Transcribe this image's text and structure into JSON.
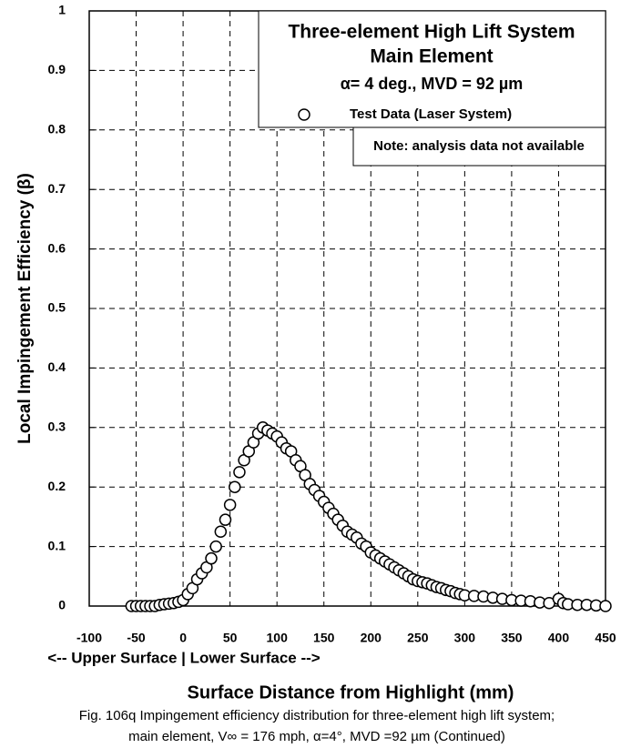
{
  "chart_data": {
    "type": "scatter",
    "title": "Three-element High Lift System",
    "subtitle": "Main Element",
    "condition": "α= 4 deg., MVD = 92 µm",
    "note": "Note: analysis data not available",
    "x_label": "Surface Distance from Highlight (mm)",
    "x_sublabel": "<-- Upper Surface  |  Lower Surface -->",
    "y_label": "Local Impingement Efficiency (β)",
    "caption": [
      "Fig. 106q  Impingement efficiency distribution for three-element high lift system;",
      "main element, V∞ = 176 mph, α=4°, MVD =92 µm (Continued)"
    ],
    "xlim": [
      -100,
      450
    ],
    "xticks": [
      -100,
      -50,
      0,
      50,
      100,
      150,
      200,
      250,
      300,
      350,
      400,
      450
    ],
    "ylim": [
      0,
      1
    ],
    "yticks": [
      0,
      0.1,
      0.2,
      0.3,
      0.4,
      0.5,
      0.6,
      0.7,
      0.8,
      0.9,
      1
    ],
    "grid": true,
    "series": [
      {
        "name": "Test Data (Laser System)",
        "color": "#000000",
        "x": [
          -55,
          -50,
          -45,
          -40,
          -35,
          -30,
          -25,
          -20,
          -15,
          -10,
          -5,
          0,
          5,
          10,
          15,
          20,
          25,
          30,
          35,
          40,
          45,
          50,
          55,
          60,
          65,
          70,
          75,
          80,
          85,
          90,
          95,
          100,
          105,
          110,
          115,
          120,
          125,
          130,
          135,
          140,
          145,
          150,
          155,
          160,
          165,
          170,
          175,
          180,
          185,
          190,
          195,
          200,
          205,
          210,
          215,
          220,
          225,
          230,
          235,
          240,
          245,
          250,
          255,
          260,
          265,
          270,
          275,
          280,
          285,
          290,
          295,
          300,
          310,
          320,
          330,
          340,
          350,
          360,
          370,
          380,
          390,
          400,
          405,
          410,
          420,
          430,
          440,
          450
        ],
        "values": [
          0,
          0,
          0,
          0,
          0,
          0,
          0.002,
          0.003,
          0.004,
          0.005,
          0.007,
          0.01,
          0.02,
          0.03,
          0.045,
          0.055,
          0.065,
          0.08,
          0.1,
          0.125,
          0.145,
          0.17,
          0.2,
          0.225,
          0.245,
          0.26,
          0.275,
          0.29,
          0.3,
          0.295,
          0.29,
          0.285,
          0.275,
          0.265,
          0.26,
          0.245,
          0.235,
          0.22,
          0.205,
          0.195,
          0.185,
          0.175,
          0.165,
          0.155,
          0.145,
          0.135,
          0.125,
          0.12,
          0.115,
          0.105,
          0.1,
          0.09,
          0.085,
          0.08,
          0.075,
          0.07,
          0.065,
          0.06,
          0.055,
          0.05,
          0.045,
          0.042,
          0.04,
          0.038,
          0.035,
          0.032,
          0.03,
          0.027,
          0.025,
          0.022,
          0.02,
          0.018,
          0.017,
          0.016,
          0.014,
          0.012,
          0.01,
          0.009,
          0.008,
          0.006,
          0.005,
          0.012,
          0.005,
          0.003,
          0.002,
          0.002,
          0.001,
          0
        ]
      }
    ]
  }
}
